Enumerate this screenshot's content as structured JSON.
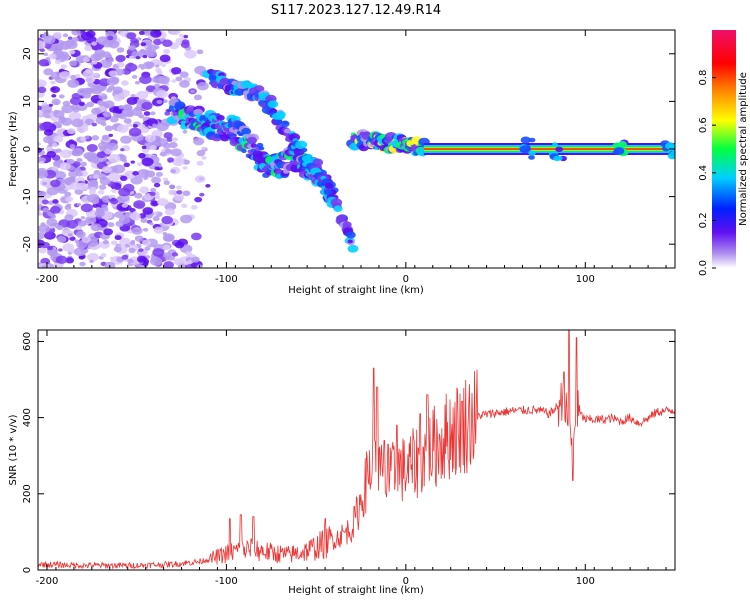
{
  "title": "S117.2023.127.12.49.R14",
  "chart_data": [
    {
      "type": "heatmap",
      "xlabel": "Height of straight line (km)",
      "ylabel": "Frequency (Hz)",
      "xlim": [
        -205,
        150
      ],
      "ylim": [
        -25,
        25
      ],
      "xticks": [
        -200,
        -100,
        0,
        100
      ],
      "yticks": [
        -20,
        -10,
        0,
        10,
        20
      ],
      "colorbar": {
        "label": "Normalized spectral amplitude",
        "range": [
          0,
          1
        ],
        "ticks": [
          "0.0",
          "0.2",
          "0.4",
          "0.6",
          "0.8"
        ],
        "colors": [
          "#ffffff",
          "#b090f0",
          "#6010f0",
          "#0020ff",
          "#00d0ff",
          "#00ff40",
          "#ffff00",
          "#ff8000",
          "#ff0000",
          "#f0106a"
        ]
      },
      "ridges": [
        {
          "desc": "main descending trace",
          "points": [
            [
              -130,
              8
            ],
            [
              -110,
              5
            ],
            [
              -95,
              4
            ],
            [
              -85,
              0
            ],
            [
              -75,
              -4
            ],
            [
              -60,
              -2
            ],
            [
              -50,
              -5
            ],
            [
              -40,
              -10
            ]
          ]
        },
        {
          "desc": "upper descending trace",
          "points": [
            [
              -110,
              15
            ],
            [
              -85,
              12
            ],
            [
              -75,
              9
            ],
            [
              -65,
              3
            ],
            [
              -55,
              -3
            ],
            [
              -45,
              -8
            ],
            [
              -35,
              -15
            ],
            [
              -30,
              -20
            ]
          ]
        },
        {
          "desc": "steady carrier",
          "points": [
            [
              -30,
              2
            ],
            [
              -15,
              1
            ],
            [
              0,
              0.5
            ],
            [
              10,
              0
            ],
            [
              150,
              0
            ]
          ]
        }
      ]
    },
    {
      "type": "line",
      "xlabel": "Height of straight line (km)",
      "ylabel": "SNR (10 * v/v)",
      "xlim": [
        -205,
        150
      ],
      "ylim": [
        0,
        630
      ],
      "xticks": [
        -200,
        -100,
        0,
        100
      ],
      "yticks": [
        0,
        200,
        400,
        600
      ],
      "color": "#ee3333",
      "keypoints": [
        [
          -205,
          15
        ],
        [
          -180,
          12
        ],
        [
          -150,
          12
        ],
        [
          -130,
          15
        ],
        [
          -115,
          22
        ],
        [
          -105,
          35
        ],
        [
          -95,
          50
        ],
        [
          -85,
          55
        ],
        [
          -75,
          45
        ],
        [
          -65,
          40
        ],
        [
          -55,
          50
        ],
        [
          -45,
          70
        ],
        [
          -38,
          85
        ],
        [
          -30,
          110
        ],
        [
          -25,
          180
        ],
        [
          -20,
          270
        ],
        [
          -15,
          260
        ],
        [
          -10,
          230
        ],
        [
          -5,
          270
        ],
        [
          0,
          260
        ],
        [
          5,
          280
        ],
        [
          10,
          300
        ],
        [
          15,
          320
        ],
        [
          20,
          340
        ],
        [
          25,
          360
        ],
        [
          30,
          375
        ],
        [
          35,
          390
        ],
        [
          40,
          405
        ],
        [
          50,
          412
        ],
        [
          60,
          418
        ],
        [
          70,
          420
        ],
        [
          75,
          418
        ],
        [
          80,
          410
        ],
        [
          85,
          430
        ],
        [
          88,
          450
        ],
        [
          92,
          330
        ],
        [
          96,
          415
        ],
        [
          100,
          395
        ],
        [
          110,
          395
        ],
        [
          115,
          398
        ],
        [
          120,
          390
        ],
        [
          125,
          400
        ],
        [
          130,
          385
        ],
        [
          135,
          398
        ],
        [
          140,
          415
        ],
        [
          150,
          420
        ]
      ],
      "spikes": [
        [
          -98,
          135
        ],
        [
          -92,
          145
        ],
        [
          -85,
          140
        ],
        [
          -45,
          135
        ],
        [
          -18,
          530
        ],
        [
          -16,
          480
        ],
        [
          -12,
          340
        ],
        [
          -10,
          330
        ],
        [
          -5,
          380
        ],
        [
          8,
          410
        ],
        [
          12,
          460
        ],
        [
          88,
          520
        ],
        [
          91,
          630
        ],
        [
          93,
          235
        ],
        [
          95,
          610
        ]
      ]
    }
  ]
}
